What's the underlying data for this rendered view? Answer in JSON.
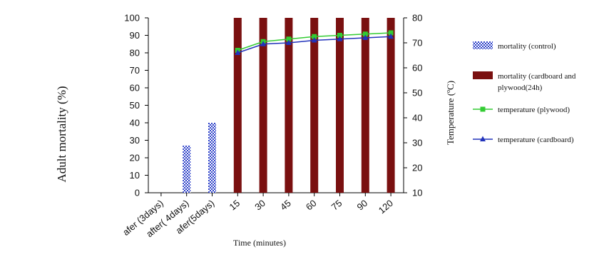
{
  "chart_data": {
    "type": "bar",
    "title": "",
    "xlabel": "Time (minutes)",
    "ylabel": "Adult mortality (%)",
    "y2label": "Temperature (ºC)",
    "ylim": [
      0,
      100
    ],
    "y2lim": [
      10,
      80
    ],
    "yticks": [
      0,
      10,
      20,
      30,
      40,
      50,
      60,
      70,
      80,
      90,
      100
    ],
    "y2ticks": [
      10,
      20,
      30,
      40,
      50,
      60,
      70,
      80
    ],
    "categories": [
      "afer (3days)",
      "after( 4days)",
      "afer(5days)",
      "15",
      "30",
      "45",
      "60",
      "75",
      "90",
      "120"
    ],
    "grid": false,
    "legend_position": "right",
    "series": [
      {
        "name": "mortality (control)",
        "kind": "bar",
        "axis": "left",
        "color": "#2b3fc8",
        "pattern": "checker",
        "values": [
          0,
          27,
          40,
          null,
          null,
          null,
          null,
          null,
          null,
          null
        ]
      },
      {
        "name": "mortality (cardboard and plywood(24h)",
        "kind": "bar",
        "axis": "left",
        "color": "#7a1010",
        "values": [
          null,
          null,
          null,
          100,
          100,
          100,
          100,
          100,
          100,
          100
        ]
      },
      {
        "name": "temperature (plywood)",
        "kind": "line",
        "axis": "right",
        "color": "#33cc33",
        "marker": "square",
        "values": [
          null,
          null,
          null,
          67,
          70.5,
          71.5,
          72.5,
          73,
          73.5,
          74
        ]
      },
      {
        "name": "temperature (cardboard)",
        "kind": "line",
        "axis": "right",
        "color": "#2233bb",
        "marker": "triangle",
        "values": [
          null,
          null,
          null,
          66,
          69.5,
          70,
          71,
          71.5,
          72,
          72.5
        ]
      }
    ]
  }
}
